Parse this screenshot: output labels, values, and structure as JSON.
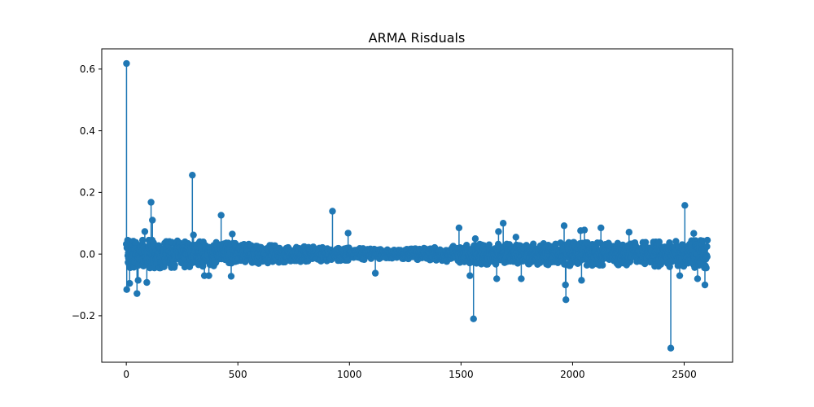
{
  "chart_data": {
    "type": "scatter",
    "title": "ARMA Risduals",
    "xlabel": "",
    "ylabel": "",
    "xlim": [
      -110,
      2717
    ],
    "ylim": [
      -0.3507,
      0.6656
    ],
    "xticks": [
      0,
      500,
      1000,
      1500,
      2000,
      2500
    ],
    "xtick_labels": [
      "0",
      "500",
      "1000",
      "1500",
      "2000",
      "2500"
    ],
    "yticks": [
      -0.2,
      0.0,
      0.2,
      0.4,
      0.6
    ],
    "ytick_labels": [
      "−0.2",
      "0.0",
      "0.2",
      "0.4",
      "0.6"
    ],
    "grid": false,
    "legend": "none",
    "color": "#1f77b4",
    "marker": "stem",
    "n_points": 2605,
    "typical_amplitude_by_x": {
      "x": [
        0,
        150,
        400,
        700,
        1000,
        1200,
        1400,
        1600,
        1800,
        2000,
        2200,
        2400,
        2605
      ],
      "amp": [
        0.045,
        0.045,
        0.038,
        0.026,
        0.02,
        0.013,
        0.022,
        0.033,
        0.032,
        0.038,
        0.035,
        0.04,
        0.045
      ]
    },
    "outliers": [
      {
        "x": 1,
        "y": 0.618
      },
      {
        "x": 296,
        "y": 0.256
      },
      {
        "x": 111,
        "y": 0.168
      },
      {
        "x": 2503,
        "y": 0.158
      },
      {
        "x": 924,
        "y": 0.139
      },
      {
        "x": 425,
        "y": 0.126
      },
      {
        "x": 117,
        "y": 0.11
      },
      {
        "x": 1689,
        "y": 0.1
      },
      {
        "x": 1962,
        "y": 0.092
      },
      {
        "x": 1491,
        "y": 0.085
      },
      {
        "x": 2127,
        "y": 0.085
      },
      {
        "x": 2053,
        "y": 0.078
      },
      {
        "x": 2036,
        "y": 0.076
      },
      {
        "x": 1668,
        "y": 0.073
      },
      {
        "x": 83,
        "y": 0.073
      },
      {
        "x": 2253,
        "y": 0.071
      },
      {
        "x": 994,
        "y": 0.068
      },
      {
        "x": 2543,
        "y": 0.067
      },
      {
        "x": 475,
        "y": 0.065
      },
      {
        "x": 301,
        "y": 0.062
      },
      {
        "x": 1746,
        "y": 0.055
      },
      {
        "x": 1564,
        "y": 0.05
      },
      {
        "x": 2,
        "y": -0.115
      },
      {
        "x": 15,
        "y": -0.095
      },
      {
        "x": 48,
        "y": -0.128
      },
      {
        "x": 53,
        "y": -0.085
      },
      {
        "x": 92,
        "y": -0.092
      },
      {
        "x": 350,
        "y": -0.07
      },
      {
        "x": 370,
        "y": -0.07
      },
      {
        "x": 470,
        "y": -0.072
      },
      {
        "x": 1116,
        "y": -0.062
      },
      {
        "x": 1540,
        "y": -0.07
      },
      {
        "x": 1556,
        "y": -0.21
      },
      {
        "x": 1660,
        "y": -0.08
      },
      {
        "x": 1770,
        "y": -0.08
      },
      {
        "x": 1968,
        "y": -0.1
      },
      {
        "x": 1970,
        "y": -0.148
      },
      {
        "x": 2040,
        "y": -0.085
      },
      {
        "x": 2440,
        "y": -0.305
      },
      {
        "x": 2480,
        "y": -0.07
      },
      {
        "x": 2560,
        "y": -0.08
      },
      {
        "x": 2593,
        "y": -0.1
      }
    ]
  }
}
